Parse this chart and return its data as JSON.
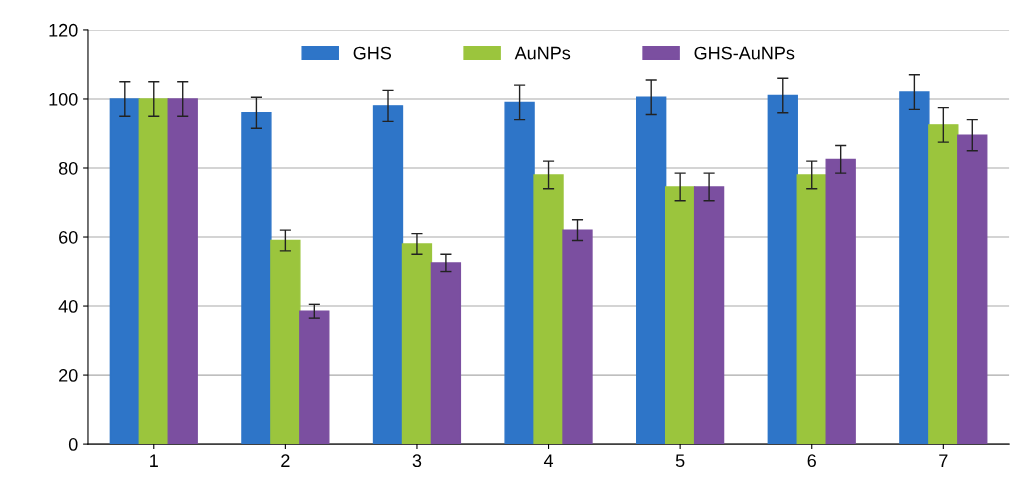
{
  "chart_data": {
    "type": "bar",
    "categories": [
      "1",
      "2",
      "3",
      "4",
      "5",
      "6",
      "7"
    ],
    "series": [
      {
        "name": "GHS",
        "color": "#2e75c8",
        "values": [
          100,
          96,
          98,
          99,
          100.5,
          101,
          102
        ],
        "errors": [
          5,
          4.5,
          4.5,
          5,
          5,
          5,
          5
        ]
      },
      {
        "name": "AuNPs",
        "color": "#9bc53d",
        "values": [
          100,
          59,
          58,
          78,
          74.5,
          78,
          92.5
        ],
        "errors": [
          5,
          3,
          3,
          4,
          4,
          4,
          5
        ]
      },
      {
        "name": "GHS-AuNPs",
        "color": "#7b4fa0",
        "values": [
          100,
          38.5,
          52.5,
          62,
          74.5,
          82.5,
          89.5
        ],
        "errors": [
          5,
          2,
          2.5,
          3,
          4,
          4,
          4.5
        ]
      }
    ],
    "ylim": [
      0,
      120
    ],
    "yticks": [
      0,
      20,
      40,
      60,
      80,
      100,
      120
    ],
    "grid": "y",
    "legend": "top"
  }
}
